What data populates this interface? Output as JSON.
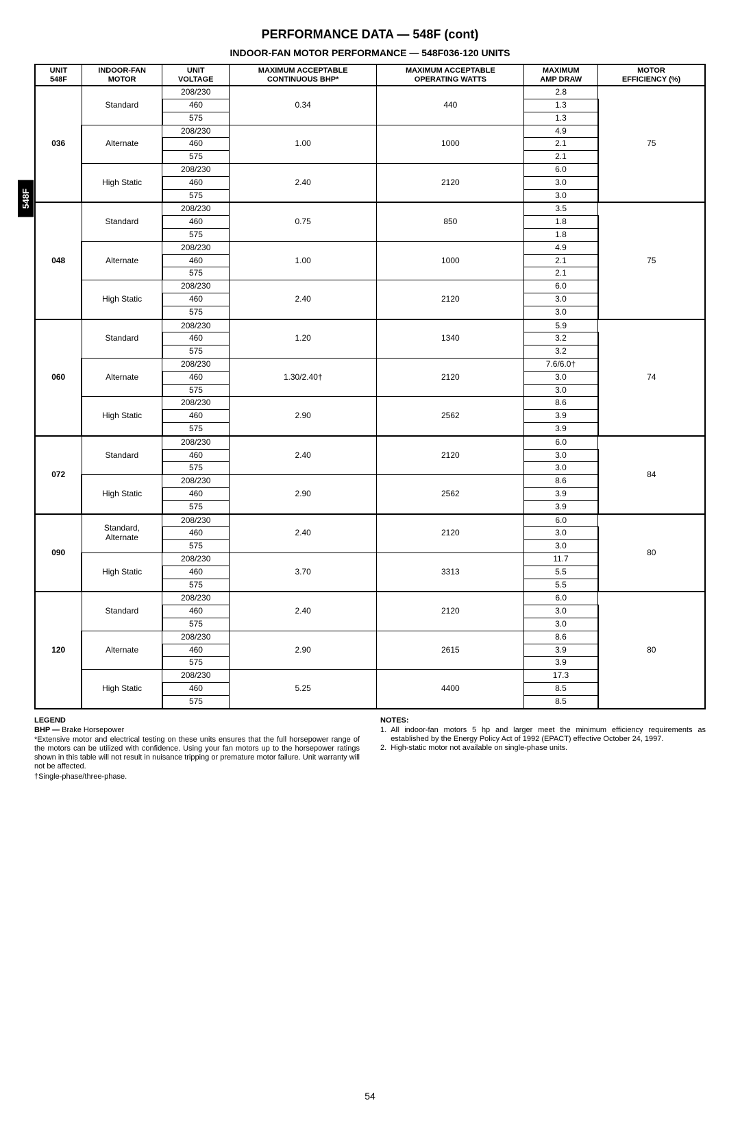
{
  "title": "PERFORMANCE DATA — 548F (cont)",
  "subtitle": "INDOOR-FAN MOTOR PERFORMANCE — 548F036-120 UNITS",
  "side_tab": "548F",
  "page_number": "54",
  "table": {
    "headers": [
      "UNIT\n548F",
      "INDOOR-FAN\nMOTOR",
      "UNIT\nVOLTAGE",
      "MAXIMUM ACCEPTABLE\nCONTINUOUS BHP*",
      "MAXIMUM ACCEPTABLE\nOPERATING WATTS",
      "MAXIMUM\nAMP DRAW",
      "MOTOR\nEFFICIENCY (%)"
    ],
    "col_widths": [
      "7%",
      "12%",
      "10%",
      "22%",
      "22%",
      "11%",
      "16%"
    ],
    "units": [
      {
        "unit": "036",
        "eff": "75",
        "motors": [
          {
            "motor": "Standard",
            "bhp": "0.34",
            "watts": "440",
            "volts": [
              {
                "v": "208/230",
                "amp": "2.8"
              },
              {
                "v": "460",
                "amp": "1.3"
              },
              {
                "v": "575",
                "amp": "1.3"
              }
            ]
          },
          {
            "motor": "Alternate",
            "bhp": "1.00",
            "watts": "1000",
            "volts": [
              {
                "v": "208/230",
                "amp": "4.9"
              },
              {
                "v": "460",
                "amp": "2.1"
              },
              {
                "v": "575",
                "amp": "2.1"
              }
            ]
          },
          {
            "motor": "High Static",
            "bhp": "2.40",
            "watts": "2120",
            "volts": [
              {
                "v": "208/230",
                "amp": "6.0"
              },
              {
                "v": "460",
                "amp": "3.0"
              },
              {
                "v": "575",
                "amp": "3.0"
              }
            ]
          }
        ]
      },
      {
        "unit": "048",
        "eff": "75",
        "motors": [
          {
            "motor": "Standard",
            "bhp": "0.75",
            "watts": "850",
            "volts": [
              {
                "v": "208/230",
                "amp": "3.5"
              },
              {
                "v": "460",
                "amp": "1.8"
              },
              {
                "v": "575",
                "amp": "1.8"
              }
            ]
          },
          {
            "motor": "Alternate",
            "bhp": "1.00",
            "watts": "1000",
            "volts": [
              {
                "v": "208/230",
                "amp": "4.9"
              },
              {
                "v": "460",
                "amp": "2.1"
              },
              {
                "v": "575",
                "amp": "2.1"
              }
            ]
          },
          {
            "motor": "High Static",
            "bhp": "2.40",
            "watts": "2120",
            "volts": [
              {
                "v": "208/230",
                "amp": "6.0"
              },
              {
                "v": "460",
                "amp": "3.0"
              },
              {
                "v": "575",
                "amp": "3.0"
              }
            ]
          }
        ]
      },
      {
        "unit": "060",
        "eff": "74",
        "motors": [
          {
            "motor": "Standard",
            "bhp": "1.20",
            "watts": "1340",
            "volts": [
              {
                "v": "208/230",
                "amp": "5.9"
              },
              {
                "v": "460",
                "amp": "3.2"
              },
              {
                "v": "575",
                "amp": "3.2"
              }
            ]
          },
          {
            "motor": "Alternate",
            "bhp": "1.30/2.40†",
            "watts": "2120",
            "volts": [
              {
                "v": "208/230",
                "amp": "7.6/6.0†"
              },
              {
                "v": "460",
                "amp": "3.0"
              },
              {
                "v": "575",
                "amp": "3.0"
              }
            ]
          },
          {
            "motor": "High Static",
            "bhp": "2.90",
            "watts": "2562",
            "volts": [
              {
                "v": "208/230",
                "amp": "8.6"
              },
              {
                "v": "460",
                "amp": "3.9"
              },
              {
                "v": "575",
                "amp": "3.9"
              }
            ]
          }
        ]
      },
      {
        "unit": "072",
        "eff": "84",
        "motors": [
          {
            "motor": "Standard",
            "bhp": "2.40",
            "watts": "2120",
            "volts": [
              {
                "v": "208/230",
                "amp": "6.0"
              },
              {
                "v": "460",
                "amp": "3.0"
              },
              {
                "v": "575",
                "amp": "3.0"
              }
            ]
          },
          {
            "motor": "High Static",
            "bhp": "2.90",
            "watts": "2562",
            "volts": [
              {
                "v": "208/230",
                "amp": "8.6"
              },
              {
                "v": "460",
                "amp": "3.9"
              },
              {
                "v": "575",
                "amp": "3.9"
              }
            ]
          }
        ]
      },
      {
        "unit": "090",
        "eff": "80",
        "motors": [
          {
            "motor": "Standard,\nAlternate",
            "bhp": "2.40",
            "watts": "2120",
            "volts": [
              {
                "v": "208/230",
                "amp": "6.0"
              },
              {
                "v": "460",
                "amp": "3.0"
              },
              {
                "v": "575",
                "amp": "3.0"
              }
            ]
          },
          {
            "motor": "High Static",
            "bhp": "3.70",
            "watts": "3313",
            "volts": [
              {
                "v": "208/230",
                "amp": "11.7"
              },
              {
                "v": "460",
                "amp": "5.5"
              },
              {
                "v": "575",
                "amp": "5.5"
              }
            ]
          }
        ]
      },
      {
        "unit": "120",
        "eff": "80",
        "motors": [
          {
            "motor": "Standard",
            "bhp": "2.40",
            "watts": "2120",
            "volts": [
              {
                "v": "208/230",
                "amp": "6.0"
              },
              {
                "v": "460",
                "amp": "3.0"
              },
              {
                "v": "575",
                "amp": "3.0"
              }
            ]
          },
          {
            "motor": "Alternate",
            "bhp": "2.90",
            "watts": "2615",
            "volts": [
              {
                "v": "208/230",
                "amp": "8.6"
              },
              {
                "v": "460",
                "amp": "3.9"
              },
              {
                "v": "575",
                "amp": "3.9"
              }
            ]
          },
          {
            "motor": "High Static",
            "bhp": "5.25",
            "watts": "4400",
            "volts": [
              {
                "v": "208/230",
                "amp": "17.3"
              },
              {
                "v": "460",
                "amp": "8.5"
              },
              {
                "v": "575",
                "amp": "8.5"
              }
            ]
          }
        ]
      }
    ]
  },
  "legend": {
    "title": "LEGEND",
    "bhp": "BHP — ",
    "bhp_def": "Brake Horsepower",
    "star": "*Extensive motor and electrical testing on these units ensures that the full horsepower range of the motors can be utilized with confidence. Using your fan motors up to the horsepower ratings shown in this table will not result in nuisance tripping or premature motor failure. Unit warranty will not be affected.",
    "dagger": "†Single-phase/three-phase."
  },
  "notes": {
    "title": "NOTES:",
    "items": [
      "All indoor-fan motors 5 hp and larger meet the minimum efficiency requirements as established by the Energy Policy Act of 1992 (EPACT) effective October 24, 1997.",
      "High-static motor not available on single-phase units."
    ]
  }
}
